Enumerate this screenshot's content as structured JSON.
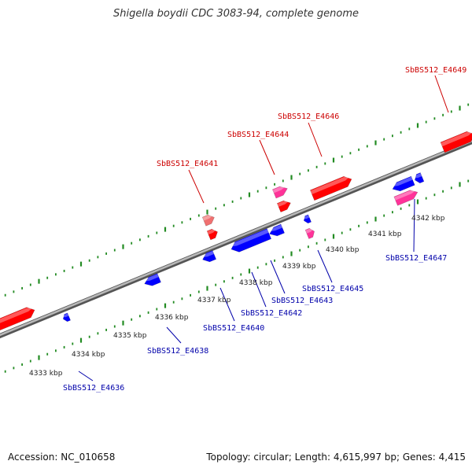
{
  "header": {
    "title": "Shigella boydii CDC 3083-94, complete genome"
  },
  "footer": {
    "accession": "Accession: NC_010658",
    "summary": "Topology: circular; Length: 4,615,997 bp; Genes: 4,415"
  },
  "colors": {
    "forward": "#ff0000",
    "forward_rna": "#ff3399",
    "reverse": "#0000ff",
    "backbone": "#888888",
    "tick": "#228b22",
    "label_forward": "#cc0000",
    "label_reverse": "#0000aa"
  },
  "ticks": [
    "4333 kbp",
    "4334 kbp",
    "4335 kbp",
    "4336 kbp",
    "4337 kbp",
    "4338 kbp",
    "4339 kbp",
    "4340 kbp",
    "4341 kbp",
    "4342 kbp"
  ],
  "gene_labels": {
    "forward": [
      "SbBS512_E4641",
      "SbBS512_E4644",
      "SbBS512_E4646",
      "SbBS512_E4649"
    ],
    "reverse": [
      "SbBS512_E4636",
      "SbBS512_E4638",
      "SbBS512_E4640",
      "SbBS512_E4642",
      "SbBS512_E4643",
      "SbBS512_E4645",
      "SbBS512_E4647"
    ]
  }
}
